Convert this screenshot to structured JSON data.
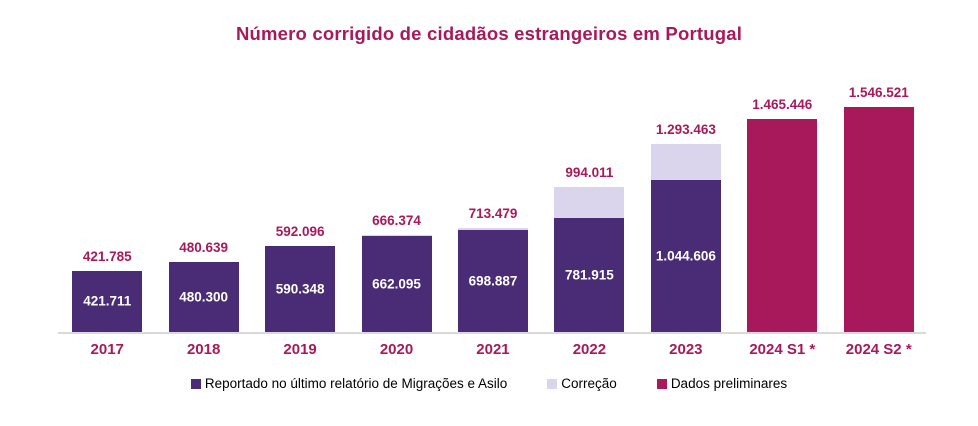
{
  "colors": {
    "accent_magenta": "#A7195B",
    "reported_purple": "#4A2C76",
    "correction_lavender": "#DAD4EC",
    "axis_gray": "#D9D9D9",
    "legend_text": "#000000",
    "inside_label_white": "#FFFFFF",
    "background": "#FFFFFF"
  },
  "chart_data": {
    "type": "bar",
    "stacked": true,
    "grid": false,
    "legend_position": "bottom",
    "title": "Número corrigido de cidadãos estrangeiros em Portugal",
    "xlabel": "",
    "ylabel": "",
    "ymax": 1546521,
    "categories": [
      "2017",
      "2018",
      "2019",
      "2020",
      "2021",
      "2022",
      "2023",
      "2024 S1 *",
      "2024 S2 *"
    ],
    "series": [
      {
        "name": "Reportado no último relatório de Migrações e Asilo",
        "color_role": "reported_purple",
        "values": [
          421711,
          480300,
          590348,
          662095,
          698887,
          781915,
          1044606,
          null,
          null
        ]
      },
      {
        "name": "Correção",
        "color_role": "correction_lavender",
        "values": [
          74,
          339,
          1748,
          4279,
          14592,
          212096,
          248857,
          null,
          null
        ]
      },
      {
        "name": "Dados preliminares",
        "color_role": "accent_magenta",
        "values": [
          null,
          null,
          null,
          null,
          null,
          null,
          null,
          1465446,
          1546521
        ]
      }
    ],
    "bars": [
      {
        "category": "2017",
        "kind": "corrected",
        "total": 421785,
        "total_label": "421.785",
        "reported": 421711,
        "inside_label": "421.711",
        "correction": 74
      },
      {
        "category": "2018",
        "kind": "corrected",
        "total": 480639,
        "total_label": "480.639",
        "reported": 480300,
        "inside_label": "480.300",
        "correction": 339
      },
      {
        "category": "2019",
        "kind": "corrected",
        "total": 592096,
        "total_label": "592.096",
        "reported": 590348,
        "inside_label": "590.348",
        "correction": 1748
      },
      {
        "category": "2020",
        "kind": "corrected",
        "total": 666374,
        "total_label": "666.374",
        "reported": 662095,
        "inside_label": "662.095",
        "correction": 4279
      },
      {
        "category": "2021",
        "kind": "corrected",
        "total": 713479,
        "total_label": "713.479",
        "reported": 698887,
        "inside_label": "698.887",
        "correction": 14592
      },
      {
        "category": "2022",
        "kind": "corrected",
        "total": 994011,
        "total_label": "994.011",
        "reported": 781915,
        "inside_label": "781.915",
        "correction": 212096
      },
      {
        "category": "2023",
        "kind": "corrected",
        "total": 1293463,
        "total_label": "1.293.463",
        "reported": 1044606,
        "inside_label": "1.044.606",
        "correction": 248857
      },
      {
        "category": "2024 S1 *",
        "kind": "preliminary",
        "total": 1465446,
        "total_label": "1.465.446"
      },
      {
        "category": "2024 S2 *",
        "kind": "preliminary",
        "total": 1546521,
        "total_label": "1.546.521"
      }
    ]
  },
  "legend": {
    "items": [
      {
        "label": "Reportado no último relatório de Migrações e Asilo",
        "color_role": "reported_purple"
      },
      {
        "label": "Correção",
        "color_role": "correction_lavender"
      },
      {
        "label": "Dados preliminares",
        "color_role": "accent_magenta"
      }
    ]
  }
}
